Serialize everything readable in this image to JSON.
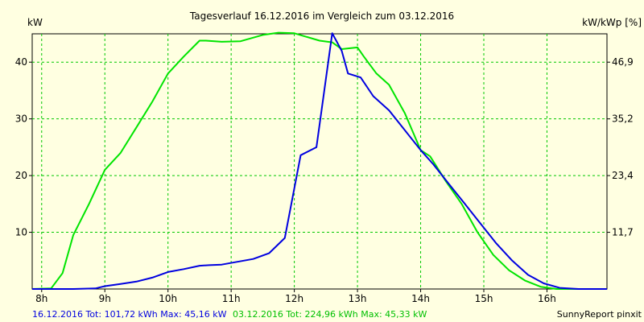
{
  "chart_data": {
    "type": "line",
    "title": "Tagesverlauf 16.12.2016 im Vergleich zum 03.12.2016",
    "ylabel": "kW",
    "ylabel_right": "kW/kWp [%]",
    "xlim": [
      7.85,
      16.95
    ],
    "ylim": [
      0,
      45
    ],
    "grid": true,
    "x_ticks": [
      8,
      9,
      10,
      11,
      12,
      13,
      14,
      15,
      16
    ],
    "x_tick_labels": [
      "8h",
      "9h",
      "10h",
      "11h",
      "12h",
      "13h",
      "14h",
      "15h",
      "16h"
    ],
    "y_ticks": [
      10,
      20,
      30,
      40
    ],
    "y_tick_labels": [
      "10",
      "20",
      "30",
      "40"
    ],
    "y_right_ticks": [
      11.7,
      23.4,
      35.2,
      46.9
    ],
    "y_right_tick_labels": [
      "11,7",
      "23,4",
      "35,2",
      "46,9"
    ],
    "series": [
      {
        "color": "#00e400",
        "x": [
          7.85,
          8.15,
          8.33,
          8.5,
          8.75,
          9.0,
          9.25,
          9.5,
          9.75,
          10.0,
          10.25,
          10.5,
          10.6,
          10.85,
          11.15,
          11.5,
          11.75,
          12.0,
          12.15,
          12.4,
          12.6,
          12.75,
          13.0,
          13.1,
          13.3,
          13.5,
          13.75,
          14.0,
          14.15,
          14.4,
          14.65,
          14.9,
          15.15,
          15.4,
          15.65,
          15.9,
          16.15,
          16.4,
          16.95
        ],
        "y": [
          0,
          0.1,
          2.8,
          9.5,
          15,
          21,
          24,
          28.5,
          33,
          38,
          41,
          43.8,
          43.8,
          43.6,
          43.7,
          44.8,
          45.2,
          45.1,
          44.6,
          43.8,
          43.5,
          42.3,
          42.6,
          41,
          38,
          36,
          31,
          24.5,
          23.4,
          19,
          15,
          10,
          6,
          3.3,
          1.5,
          0.4,
          0,
          0,
          0
        ]
      },
      {
        "color": "#0000e0",
        "x": [
          7.85,
          8.15,
          8.5,
          8.85,
          9.0,
          9.25,
          9.5,
          9.75,
          10.0,
          10.25,
          10.5,
          10.65,
          10.85,
          11.1,
          11.35,
          11.6,
          11.85,
          12.1,
          12.35,
          12.6,
          12.75,
          12.85,
          13.05,
          13.25,
          13.5,
          13.75,
          14.0,
          14.2,
          14.45,
          14.7,
          14.95,
          15.2,
          15.45,
          15.7,
          15.95,
          16.2,
          16.5,
          16.95
        ],
        "y": [
          0,
          0,
          0,
          0.1,
          0.5,
          0.9,
          1.3,
          2,
          3,
          3.5,
          4.1,
          4.2,
          4.3,
          4.8,
          5.3,
          6.3,
          9,
          23.6,
          25,
          45.1,
          42,
          38,
          37.3,
          34,
          31.5,
          28,
          24.5,
          22,
          18.5,
          15,
          11.5,
          8,
          5,
          2.5,
          1,
          0.2,
          0,
          0
        ]
      }
    ],
    "footer": {
      "left_blue": "16.12.2016 Tot: 101,72 kWh Max: 45,16 kW",
      "left_green": "03.12.2016 Tot: 224,96 kWh Max: 45,33 kW",
      "right": "SunnyReport pinxit"
    }
  }
}
